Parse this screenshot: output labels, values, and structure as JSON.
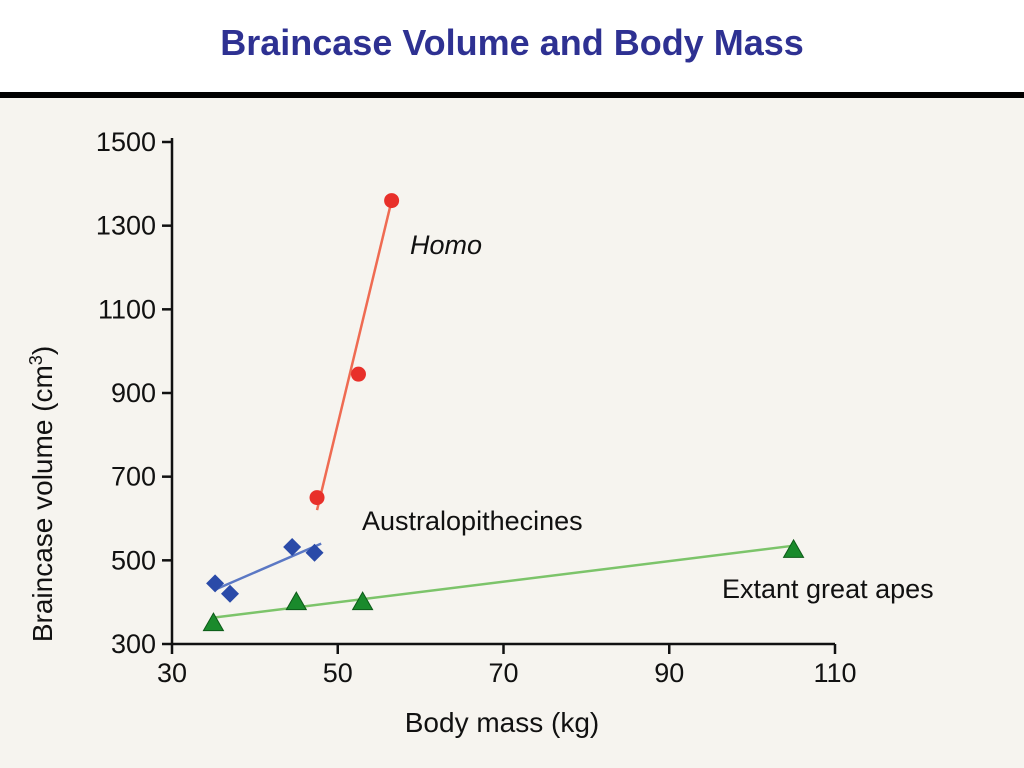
{
  "slide": {
    "title": "Braincase Volume and Body Mass"
  },
  "chart_data": {
    "type": "scatter",
    "xlabel": "Body mass (kg)",
    "ylabel": "Braincase volume (cm",
    "ylabel_superscript": "3",
    "ylabel_suffix": ")",
    "xlim": [
      30,
      110
    ],
    "ylim": [
      300,
      1500
    ],
    "x_ticks": [
      30,
      50,
      70,
      90,
      110
    ],
    "y_ticks": [
      300,
      500,
      700,
      900,
      1100,
      1300,
      1500
    ],
    "grid": false,
    "series": [
      {
        "name": "Homo",
        "label_style": "italic",
        "marker": "circle",
        "color": "#e8302a",
        "line_color": "#ef6b52",
        "points": [
          {
            "x": 47.5,
            "y": 650
          },
          {
            "x": 52.5,
            "y": 945
          },
          {
            "x": 56.5,
            "y": 1360
          }
        ],
        "fit_line": {
          "x": [
            47.5,
            56.5
          ],
          "y": [
            620,
            1360
          ]
        }
      },
      {
        "name": "Australopithecines",
        "label_style": "normal",
        "marker": "diamond",
        "color": "#2a4aa8",
        "line_color": "#5b78c4",
        "points": [
          {
            "x": 35.2,
            "y": 445
          },
          {
            "x": 37,
            "y": 420
          },
          {
            "x": 44.5,
            "y": 532
          },
          {
            "x": 47.2,
            "y": 518
          }
        ],
        "fit_line": {
          "x": [
            35.2,
            48
          ],
          "y": [
            430,
            540
          ]
        }
      },
      {
        "name": "Extant great apes",
        "label_style": "normal",
        "marker": "triangle",
        "color": "#1a8a2c",
        "line_color": "#7cc46a",
        "points": [
          {
            "x": 35,
            "y": 350
          },
          {
            "x": 45,
            "y": 400
          },
          {
            "x": 53,
            "y": 400
          },
          {
            "x": 105,
            "y": 525
          }
        ],
        "fit_line": {
          "x": [
            35,
            105
          ],
          "y": [
            363,
            535
          ]
        }
      }
    ]
  }
}
